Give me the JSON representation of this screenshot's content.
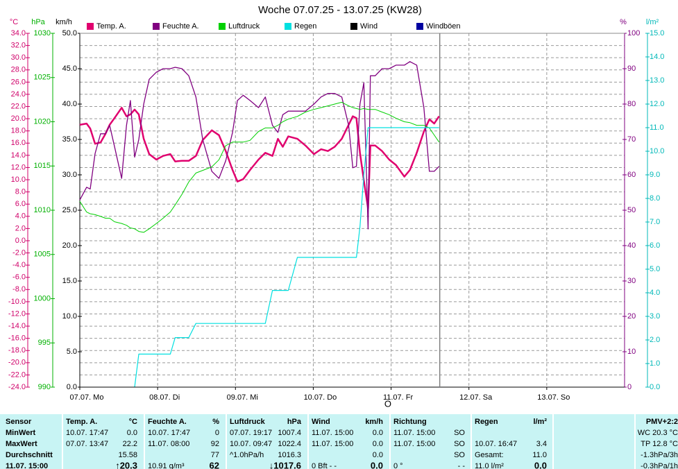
{
  "chart_data": {
    "type": "line",
    "title": "Woche 07.07.25 - 13.07.25 (KW28)",
    "x": [
      0,
      2.1,
      3.2,
      4.7,
      6.4,
      7.9,
      9.2,
      10.7,
      12.9,
      14.4,
      15.6,
      16.9,
      18.2,
      19.7,
      21.4,
      23.6,
      25.7,
      27.9,
      29.4,
      31.5,
      33.6,
      35.8,
      37.9,
      40.7,
      42.9,
      45.0,
      47.1,
      48.6,
      50.4,
      52.5,
      55.1,
      57.2,
      59.4,
      61.1,
      62.6,
      64.3,
      67.1,
      69.6,
      72.2,
      74.4,
      76.5,
      78.6,
      80.8,
      82.9,
      84.2,
      85.3,
      86.4,
      87.6,
      88.9,
      89.6,
      91.1,
      93.2,
      95.4,
      97.5,
      100.1,
      101.8,
      103.9,
      106.1,
      107.8,
      109.3,
      110.8
    ],
    "xlim": [
      0,
      168
    ],
    "xticks": [
      {
        "value": 0,
        "label": "07.07. Mo"
      },
      {
        "value": 24,
        "label": "08.07. Di"
      },
      {
        "value": 48,
        "label": "09.07. Mi"
      },
      {
        "value": 72,
        "label": "10.07. Do"
      },
      {
        "value": 96,
        "label": "11.07. Fr"
      },
      {
        "value": 120,
        "label": "12.07. Sa"
      },
      {
        "value": 144,
        "label": "13.07. So"
      }
    ],
    "y_label": "°C",
    "ylim": [
      -24,
      34
    ],
    "yticks": [
      {
        "value": -24,
        "label": "-24.0"
      },
      {
        "value": -22,
        "label": "-22.0"
      },
      {
        "value": -20,
        "label": "-20.0"
      },
      {
        "value": -18,
        "label": "-18.0"
      },
      {
        "value": -16,
        "label": "-16.0"
      },
      {
        "value": -14,
        "label": "-14.0"
      },
      {
        "value": -12,
        "label": "-12.0"
      },
      {
        "value": -10,
        "label": "-10.0"
      },
      {
        "value": -8,
        "label": "-8.0"
      },
      {
        "value": -6,
        "label": "-6.0"
      },
      {
        "value": -4,
        "label": "-4.0"
      },
      {
        "value": -2,
        "label": "-2.0"
      },
      {
        "value": 0,
        "label": "0.0"
      },
      {
        "value": 2,
        "label": "2.0"
      },
      {
        "value": 4,
        "label": "4.0"
      },
      {
        "value": 6,
        "label": "6.0"
      },
      {
        "value": 8,
        "label": "8.0"
      },
      {
        "value": 10,
        "label": "10.0"
      },
      {
        "value": 12,
        "label": "12.0"
      },
      {
        "value": 14,
        "label": "14.0"
      },
      {
        "value": 16,
        "label": "16.0"
      },
      {
        "value": 18,
        "label": "18.0"
      },
      {
        "value": 20,
        "label": "20.0"
      },
      {
        "value": 22,
        "label": "22.0"
      },
      {
        "value": 24,
        "label": "24.0"
      },
      {
        "value": 26,
        "label": "26.0"
      },
      {
        "value": 28,
        "label": "28.0"
      },
      {
        "value": 30,
        "label": "30.0"
      },
      {
        "value": 32,
        "label": "32.0"
      },
      {
        "value": 34,
        "label": "34.0"
      }
    ],
    "y2_label": "hPa",
    "y2lim": [
      990,
      1030
    ],
    "y2ticks": [
      990,
      995,
      1000,
      1005,
      1010,
      1015,
      1020,
      1025,
      1030
    ],
    "y3_label": "km/h",
    "y3lim": [
      0,
      50
    ],
    "y3ticks": [
      {
        "value": 0,
        "label": "0.0"
      },
      {
        "value": 5,
        "label": "5.0"
      },
      {
        "value": 10,
        "label": "10.0"
      },
      {
        "value": 15,
        "label": "15.0"
      },
      {
        "value": 20,
        "label": "20.0"
      },
      {
        "value": 25,
        "label": "25.0"
      },
      {
        "value": 30,
        "label": "30.0"
      },
      {
        "value": 35,
        "label": "35.0"
      },
      {
        "value": 40,
        "label": "40.0"
      },
      {
        "value": 45,
        "label": "45.0"
      },
      {
        "value": 50,
        "label": "50.0"
      }
    ],
    "y4_label": "%",
    "y4lim": [
      0,
      100
    ],
    "y4ticks": [
      0,
      10,
      20,
      30,
      40,
      50,
      60,
      70,
      80,
      90,
      100
    ],
    "y5_label": "l/m²",
    "y5lim": [
      0,
      15
    ],
    "y5ticks": [
      {
        "value": 0,
        "label": "0.0"
      },
      {
        "value": 1,
        "label": "1.0"
      },
      {
        "value": 2,
        "label": "2.0"
      },
      {
        "value": 3,
        "label": "3.0"
      },
      {
        "value": 4,
        "label": "4.0"
      },
      {
        "value": 5,
        "label": "5.0"
      },
      {
        "value": 6,
        "label": "6.0"
      },
      {
        "value": 7,
        "label": "7.0"
      },
      {
        "value": 8,
        "label": "8.0"
      },
      {
        "value": 9,
        "label": "9.0"
      },
      {
        "value": 10,
        "label": "10.0"
      },
      {
        "value": 11,
        "label": "11.0"
      },
      {
        "value": 12,
        "label": "12.0"
      },
      {
        "value": 13,
        "label": "13.0"
      },
      {
        "value": 14,
        "label": "14.0"
      },
      {
        "value": 15,
        "label": "15.0"
      }
    ],
    "grid": true,
    "now_x": 111,
    "annotation": {
      "text": "O",
      "x": 95
    },
    "series": [
      {
        "name": "Temp. A.",
        "color": "#e0006e",
        "axis": "y",
        "width": 2.5,
        "values": [
          19.0,
          19.2,
          18.4,
          15.9,
          16.1,
          17.5,
          19.0,
          20.1,
          21.8,
          20.4,
          20.7,
          21.5,
          20.7,
          16.7,
          14.2,
          13.3,
          13.9,
          14.2,
          13.0,
          13.1,
          13.1,
          13.9,
          16.5,
          18.1,
          17.3,
          14.7,
          11.6,
          9.7,
          10.1,
          11.6,
          13.3,
          14.4,
          13.9,
          16.7,
          15.4,
          17.1,
          16.7,
          15.6,
          14.2,
          15.0,
          14.7,
          15.4,
          16.7,
          19.0,
          20.4,
          20.1,
          14.4,
          9.9,
          5.3,
          15.6,
          15.6,
          14.7,
          13.3,
          12.4,
          10.5,
          11.6,
          14.4,
          17.9,
          19.9,
          19.2,
          20.4
        ]
      },
      {
        "name": "Feuchte A.",
        "color": "#800080",
        "axis": "y4",
        "width": 1.3,
        "values": [
          52.9,
          56.5,
          56,
          66,
          71.6,
          71.6,
          74,
          68,
          59,
          74,
          81,
          65,
          70,
          80,
          87,
          89,
          90,
          90,
          90.4,
          90,
          88,
          82,
          70,
          61,
          59,
          64,
          72,
          81,
          82.5,
          81,
          79,
          82,
          74,
          72,
          77,
          78,
          78,
          78,
          80,
          82,
          83,
          83,
          82,
          74,
          62,
          62.4,
          80,
          86,
          44.7,
          88,
          88,
          90,
          90,
          91,
          91,
          92,
          91,
          79,
          61,
          61,
          62.4
        ]
      },
      {
        "name": "Luftdruck",
        "color": "#00d000",
        "axis": "y2",
        "width": 1,
        "values": [
          1011.0,
          1009.8,
          1009.6,
          1009.5,
          1009.3,
          1009.1,
          1009.1,
          1008.7,
          1008.5,
          1008.3,
          1008.0,
          1007.9,
          1007.6,
          1007.5,
          1007.9,
          1008.5,
          1009.1,
          1009.8,
          1010.6,
          1011.8,
          1013.2,
          1014.2,
          1014.5,
          1014.9,
          1015.7,
          1017.3,
          1017.7,
          1017.7,
          1017.7,
          1017.9,
          1018.9,
          1019.3,
          1019.3,
          1019.6,
          1020.0,
          1020.3,
          1020.6,
          1021.1,
          1021.4,
          1021.6,
          1021.8,
          1022.0,
          1022.2,
          1021.8,
          1021.6,
          1021.5,
          1021.4,
          1021.5,
          1021.4,
          1021.4,
          1021.4,
          1021.1,
          1020.8,
          1020.4,
          1020.0,
          1019.9,
          1019.6,
          1019.6,
          1019.3,
          1018.5,
          1017.7
        ]
      },
      {
        "name": "Regen",
        "color": "#00e0e0",
        "axis": "y5",
        "width": 1.2,
        "values": [
          null,
          null,
          null,
          null,
          null,
          null,
          null,
          null,
          null,
          null,
          null,
          0,
          1.4,
          1.4,
          1.4,
          1.4,
          1.4,
          1.4,
          2.1,
          2.1,
          2.1,
          2.7,
          2.7,
          2.7,
          2.7,
          2.7,
          2.7,
          2.7,
          2.7,
          2.7,
          2.7,
          2.7,
          4.1,
          4.1,
          4.1,
          4.1,
          5.5,
          5.5,
          5.5,
          5.5,
          5.5,
          5.5,
          5.5,
          5.5,
          5.5,
          5.5,
          6.8,
          9.0,
          11.0,
          11.0,
          11.0,
          11.0,
          11.0,
          11.0,
          11.0,
          11.0,
          11.0,
          11.0,
          11.0,
          11.0,
          11.0
        ]
      },
      {
        "name": "Windböen",
        "color": "#0000a0",
        "axis": "y3",
        "width": 1,
        "values": [
          0,
          0,
          0,
          0,
          0,
          0,
          0,
          0,
          0,
          0,
          0,
          0,
          0,
          0,
          0,
          0,
          0,
          0,
          0,
          0,
          0,
          0,
          0,
          0,
          0,
          0,
          0,
          0,
          0,
          0,
          0,
          0,
          0,
          0,
          0,
          0,
          0,
          0,
          0,
          0,
          0,
          0,
          0,
          0,
          0,
          0,
          0,
          0,
          0,
          0,
          0,
          0,
          0,
          0,
          0,
          0,
          0,
          0,
          0,
          0,
          0
        ]
      },
      {
        "name": "Wind",
        "color": "#000000",
        "axis": "y3",
        "width": 1,
        "values": [
          0,
          0,
          0,
          0,
          0,
          0,
          0,
          0,
          0,
          0,
          0,
          0,
          0,
          0,
          0,
          0,
          0,
          0,
          0,
          0,
          0,
          0,
          0,
          0,
          0,
          0,
          0,
          0,
          0,
          0,
          0,
          0,
          0,
          0,
          0,
          0,
          0,
          0,
          0,
          0,
          0,
          0,
          0,
          0,
          0,
          0,
          0,
          0,
          0,
          0,
          0,
          0,
          0,
          0,
          0,
          0,
          0,
          0,
          0,
          0,
          0
        ]
      }
    ]
  },
  "table": {
    "rows": [
      [
        "Sensor",
        "Temp. A.",
        "°C",
        "Feuchte A.",
        "%",
        "Luftdruck",
        "hPa",
        "Wind",
        "km/h",
        "Richtung",
        null,
        "Regen",
        "l/m²",
        "PMV+2:2"
      ],
      [
        "MinWert",
        "10.07. 17:47",
        "0.0",
        "10.07. 17:47",
        "0",
        "07.07. 19:17",
        "1007.4",
        "11.07. 15:00",
        "0.0",
        "11.07. 15:00",
        "SO",
        null,
        null,
        "WC 20.3 °C"
      ],
      [
        "MaxWert",
        "07.07. 13:47",
        "22.2",
        "11.07. 08:00",
        "92",
        "10.07. 09:47",
        "1022.4",
        "11.07. 15:00",
        "0.0",
        "11.07. 15:00",
        "SO",
        "10.07. 16:47",
        "3.4",
        "TP 12.8 °C"
      ],
      [
        "Durchschnitt",
        null,
        "15.58",
        null,
        "77",
        "^1.0hPa/h",
        "1016.3",
        null,
        "0.0",
        null,
        "SO",
        "Gesamt:",
        "11.0",
        "-1.3hPa/3h"
      ],
      [
        "11.07. 15:00",
        null,
        "↑20.3",
        "10.91 g/m³",
        "62",
        null,
        "↓1017.6",
        "0 Bft - -",
        "0.0",
        "0 °",
        "- -",
        "11.0 l/m²",
        "0.0",
        "-0.3hPa/1h"
      ]
    ]
  }
}
